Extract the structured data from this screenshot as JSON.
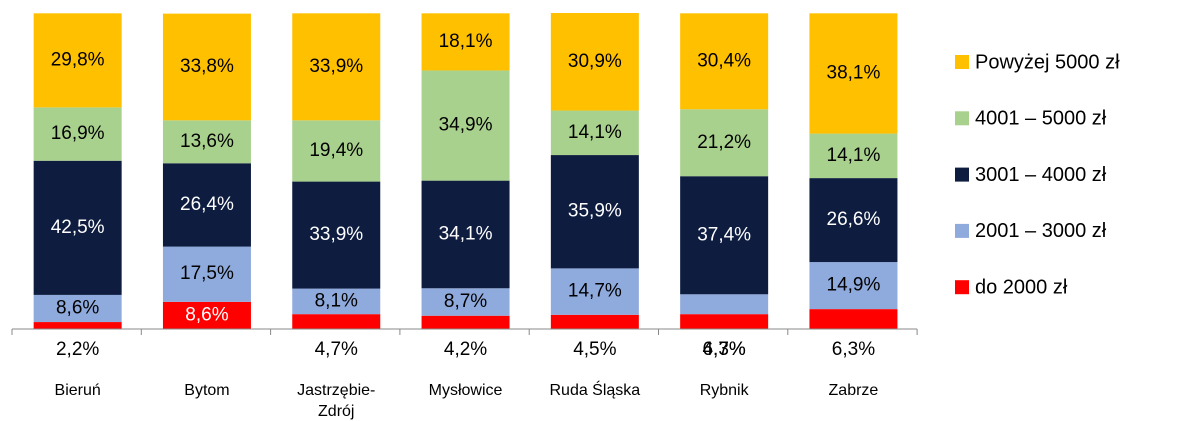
{
  "chart_data": {
    "type": "stacked_bar",
    "categories": [
      "Bieruń",
      "Bytom",
      "Jastrzębie-Zdrój",
      "Mysłowice",
      "Ruda Śląska",
      "Rybnik",
      "Zabrze"
    ],
    "series": [
      {
        "name": "do 2000 zł",
        "color": "#ff0000",
        "values": [
          2.2,
          8.6,
          4.7,
          4.2,
          4.5,
          4.7,
          6.3
        ],
        "value_labels": [
          "2,2%",
          "8,6%",
          "4,7%",
          "4,2%",
          "4,5%",
          "4,7%",
          "6,3%"
        ]
      },
      {
        "name": "2001 – 3000 zł",
        "color": "#8faadc",
        "values": [
          8.6,
          17.5,
          8.1,
          8.7,
          14.7,
          6.3,
          14.9
        ],
        "value_labels": [
          "8,6%",
          "17,5%",
          "8,1%",
          "8,7%",
          "14,7%",
          "6,3%",
          "14,9%"
        ]
      },
      {
        "name": "3001 – 4000 zł",
        "color": "#0d1c3f",
        "values": [
          42.5,
          26.4,
          33.9,
          34.1,
          35.9,
          37.4,
          26.6
        ],
        "value_labels": [
          "42,5%",
          "26,4%",
          "33,9%",
          "34,1%",
          "35,9%",
          "37,4%",
          "26,6%"
        ]
      },
      {
        "name": "4001 – 5000 zł",
        "color": "#a9d18e",
        "values": [
          16.9,
          13.6,
          19.4,
          34.9,
          14.1,
          21.2,
          14.1
        ],
        "value_labels": [
          "16,9%",
          "13,6%",
          "19,4%",
          "34,9%",
          "14,1%",
          "21,2%",
          "14,1%"
        ]
      },
      {
        "name": "Powyżej 5000 zł",
        "color": "#ffc000",
        "values": [
          29.8,
          33.8,
          33.9,
          18.1,
          30.9,
          30.4,
          38.1
        ],
        "value_labels": [
          "29,8%",
          "33,8%",
          "33,9%",
          "18,1%",
          "30,9%",
          "30,4%",
          "38,1%"
        ]
      }
    ]
  }
}
